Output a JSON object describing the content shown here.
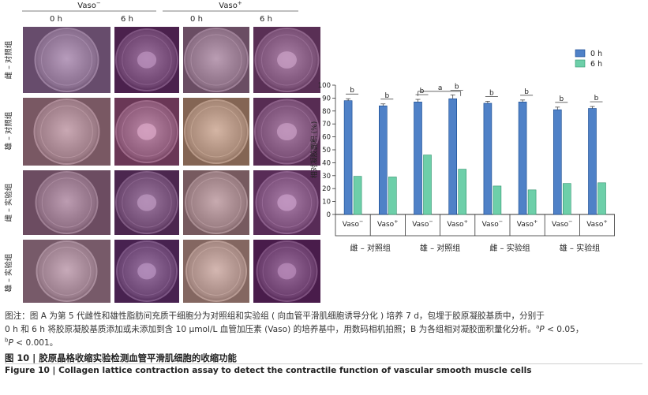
{
  "panel_a": {
    "group_headers": [
      "Vaso",
      "Vaso"
    ],
    "group_header_sups": [
      "−",
      "+"
    ],
    "time_headers": [
      "0 h",
      "6 h",
      "0 h",
      "6 h"
    ],
    "row_labels": [
      "雌 – 对照组",
      "雄 – 对照组",
      "雌 – 实验组",
      "雄 – 实验组"
    ],
    "well_tints": [
      [
        "#8a6f8f",
        "#6e4470",
        "#8d7086",
        "#7c5278"
      ],
      [
        "#9c7b86",
        "#8d5a79",
        "#a78877",
        "#7a4f76"
      ],
      [
        "#8f6f84",
        "#6f4a72",
        "#9a7d82",
        "#7b4f7a"
      ],
      [
        "#9a7d8c",
        "#6b4573",
        "#a78a84",
        "#6c3f6e"
      ]
    ]
  },
  "chart_data": {
    "type": "bar",
    "categories": [
      "Vaso−",
      "Vaso+",
      "Vaso−",
      "Vaso+",
      "Vaso−",
      "Vaso+",
      "Vaso−",
      "Vaso+"
    ],
    "category_base": "Vaso",
    "category_sups": [
      "−",
      "+",
      "−",
      "+",
      "−",
      "+",
      "−",
      "+"
    ],
    "groups": [
      "雌 – 对照组",
      "雄 – 对照组",
      "雌 – 实验组",
      "雄 – 实验组"
    ],
    "series": [
      {
        "name": "0 h",
        "color": "#4f81c7",
        "values": [
          88,
          84,
          87,
          89.5,
          86,
          87,
          81,
          82
        ],
        "errors": [
          1.5,
          1.5,
          2.0,
          3.0,
          1.5,
          1.5,
          2.0,
          1.5
        ]
      },
      {
        "name": "6 h",
        "color": "#6dcfa9",
        "values": [
          29.5,
          29,
          46,
          35,
          22,
          19,
          24,
          24.5
        ],
        "errors": [
          0,
          0,
          0,
          0,
          0,
          0,
          0,
          0
        ]
      }
    ],
    "ylabel": "相对凝胶面积 (%)",
    "ylim": [
      0,
      100
    ],
    "yticks": [
      0,
      10,
      20,
      30,
      40,
      50,
      60,
      70,
      80,
      90,
      100
    ],
    "annotations": {
      "b_marks": [
        "b",
        "b",
        "b",
        "b",
        "b",
        "b",
        "b",
        "b"
      ],
      "a_mark": "a"
    },
    "legend_position": "top-right",
    "grid": false
  },
  "caption": {
    "prefix": "图注：",
    "line1": "图 A 为第 5 代雌性和雄性脂肪间充质干细胞分为对照组和实验组 ( 向血管平滑肌细胞诱导分化 ) 培养 7 d，包埋于胶原凝胶基质中，分别于",
    "line2": "0 h 和 6 h 将胶原凝胶基质添加或未添加到含 10 μmol/L 血管加压素 (Vaso) 的培养基中，用数码相机拍照；B 为各组相对凝胶面积量化分析。",
    "a_sup": "a",
    "p1": "P",
    "p1_rest": " < 0.05，",
    "b_sup": "b",
    "p2": "P",
    "p2_rest": " < 0.001。"
  },
  "figure_title_cn": "图 10  | 胶原晶格收缩实验检测血管平滑肌细胞的收缩功能",
  "figure_title_en": "Figure 10  |  Collagen lattice contraction assay to detect the contractile function of vascular smooth muscle cells"
}
